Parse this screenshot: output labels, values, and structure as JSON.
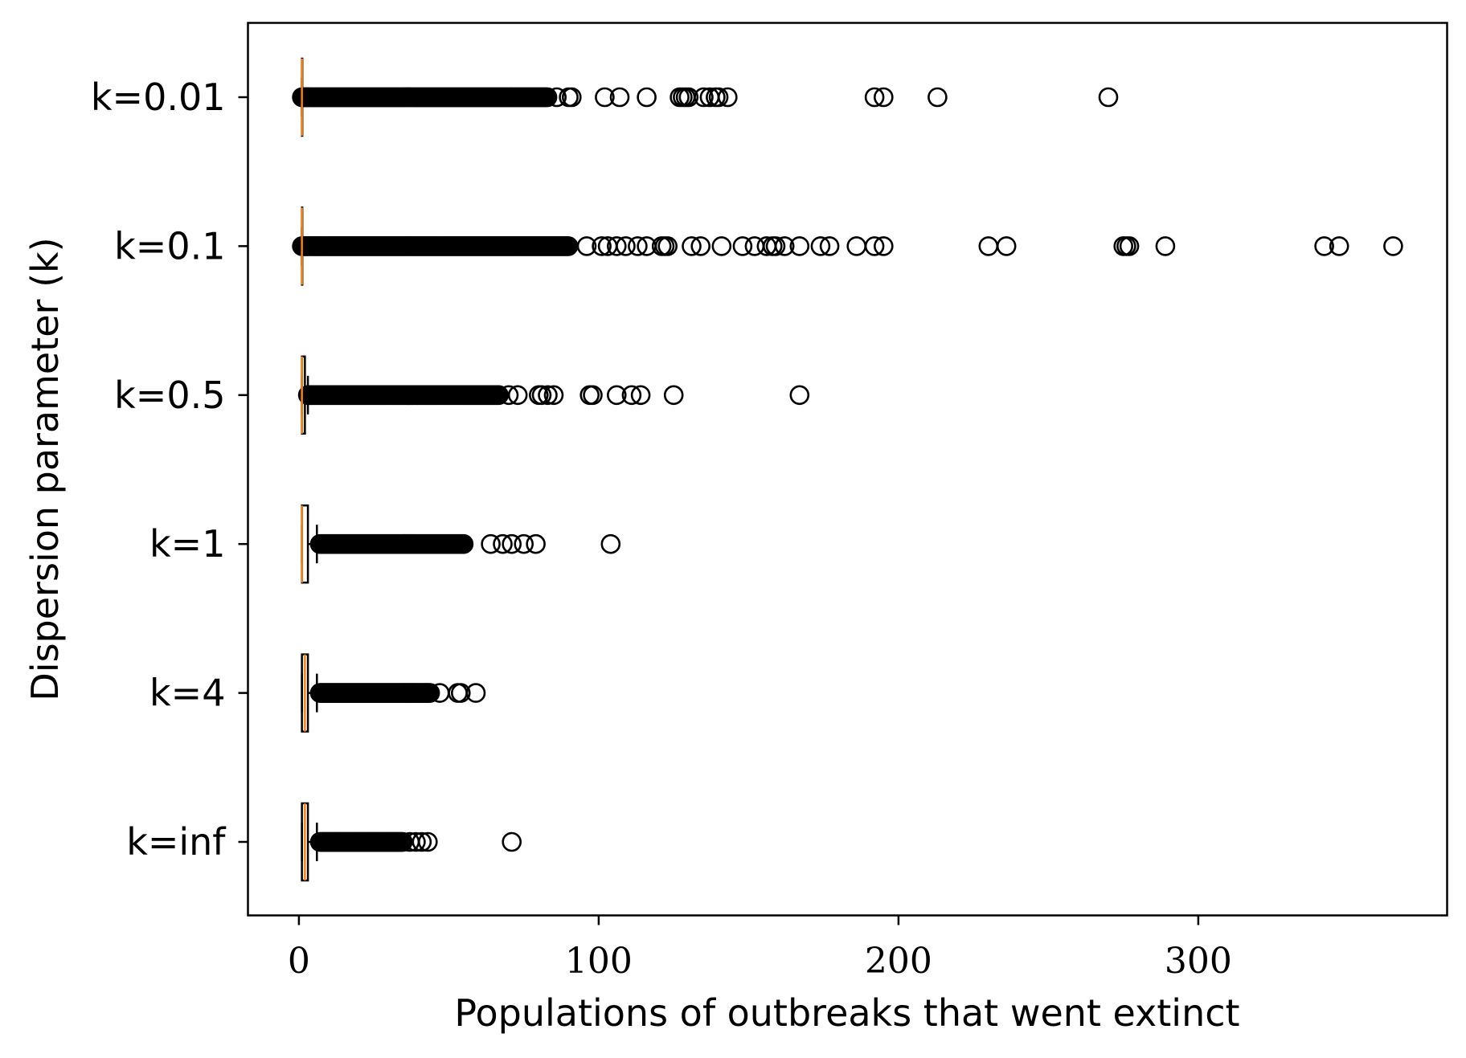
{
  "chart_data": {
    "type": "boxplot",
    "orientation": "horizontal",
    "xlabel": "Populations of outbreaks that went extinct",
    "ylabel": "Dispersion parameter (k)",
    "xlim": [
      -17,
      383
    ],
    "x_ticks": [
      0,
      100,
      200,
      300
    ],
    "grid": false,
    "categories": [
      "k=0.01",
      "k=0.1",
      "k=0.5",
      "k=1",
      "k=4",
      "k=inf"
    ],
    "series": [
      {
        "category": "k=0.01",
        "box": {
          "q1": 1,
          "median": 1,
          "q3": 1,
          "whisker_low": 1,
          "whisker_high": 1
        },
        "dense_outlier_range": [
          1,
          83
        ],
        "outliers": [
          86,
          90,
          91,
          102,
          107,
          116,
          127,
          128,
          129,
          130,
          135,
          137,
          139,
          140,
          143,
          192,
          195,
          213,
          270
        ]
      },
      {
        "category": "k=0.1",
        "box": {
          "q1": 1,
          "median": 1,
          "q3": 1,
          "whisker_low": 1,
          "whisker_high": 1
        },
        "dense_outlier_range": [
          1,
          90
        ],
        "outliers": [
          96,
          101,
          103,
          106,
          109,
          113,
          116,
          121,
          122,
          123,
          131,
          134,
          141,
          148,
          152,
          156,
          158,
          159,
          162,
          167,
          174,
          177,
          186,
          192,
          195,
          230,
          236,
          275,
          276,
          277,
          289,
          342,
          347,
          365
        ]
      },
      {
        "category": "k=0.5",
        "box": {
          "q1": 1,
          "median": 1,
          "q3": 2,
          "whisker_low": 1,
          "whisker_high": 3
        },
        "dense_outlier_range": [
          3,
          67
        ],
        "outliers": [
          70,
          73,
          80,
          81,
          83,
          85,
          97,
          98,
          106,
          111,
          114,
          125,
          167
        ]
      },
      {
        "category": "k=1",
        "box": {
          "q1": 1,
          "median": 1,
          "q3": 3,
          "whisker_low": 1,
          "whisker_high": 6
        },
        "dense_outlier_range": [
          7,
          55
        ],
        "outliers": [
          64,
          68,
          71,
          75,
          79,
          104
        ]
      },
      {
        "category": "k=4",
        "box": {
          "q1": 1,
          "median": 2,
          "q3": 3,
          "whisker_low": 1,
          "whisker_high": 6
        },
        "dense_outlier_range": [
          7,
          44
        ],
        "outliers": [
          47,
          53,
          54,
          59
        ]
      },
      {
        "category": "k=inf",
        "box": {
          "q1": 1,
          "median": 2,
          "q3": 3,
          "whisker_low": 1,
          "whisker_high": 6
        },
        "dense_outlier_range": [
          7,
          35
        ],
        "outliers": [
          37,
          39,
          41,
          43,
          71
        ]
      }
    ],
    "colors": {
      "box": "#000000",
      "median": "#ff7f0e",
      "outlier": "#000000"
    }
  }
}
